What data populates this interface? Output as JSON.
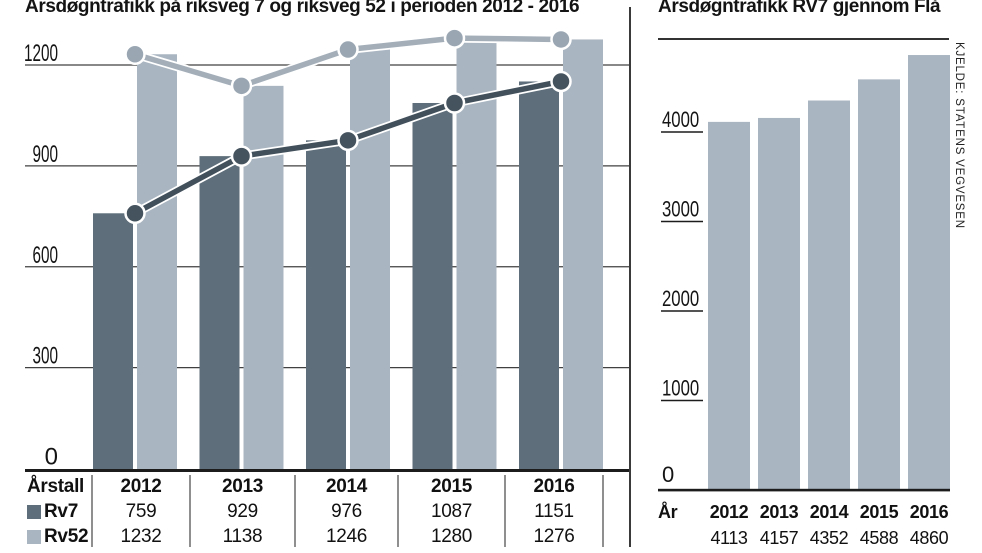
{
  "chart_data": [
    {
      "type": "bar",
      "subtype": "grouped-bars-with-line-overlay",
      "title": "Årsdøgntrafikk på riksveg 7 og riksveg 52 i perioden 2012 - 2016",
      "categories": [
        "2012",
        "2013",
        "2014",
        "2015",
        "2016"
      ],
      "series": [
        {
          "name": "Rv7",
          "values": [
            759,
            929,
            976,
            1087,
            1151
          ],
          "bar_color": "#5e6e7a",
          "line_color": "#42505b",
          "marker_color": "#45535e"
        },
        {
          "name": "Rv52",
          "values": [
            1232,
            1138,
            1246,
            1280,
            1276
          ],
          "bar_color": "#a9b5c1",
          "line_color": "#a3aeb9",
          "marker_color": "#9aa7b3"
        }
      ],
      "ylim": [
        0,
        1200
      ],
      "yticks": [
        0,
        300,
        600,
        900,
        1200
      ],
      "grid": true,
      "table_header": "Årstall",
      "legend_position": "table-left"
    },
    {
      "type": "bar",
      "title": "Årsdøgntrafikk RV7 gjennom Flå",
      "categories": [
        "2012",
        "2013",
        "2014",
        "2015",
        "2016"
      ],
      "values": [
        4113,
        4157,
        4352,
        4588,
        4860
      ],
      "bar_color": "#a9b5c1",
      "ylim": [
        0,
        5000
      ],
      "yticks": [
        0,
        1000,
        2000,
        3000,
        4000
      ],
      "grid": false,
      "row_header": "År"
    }
  ],
  "source": {
    "label": "KJELDE: STATENS VEGVESEN"
  },
  "colors": {
    "background": "#ffffff",
    "text": "#141414",
    "gridline": "#404040",
    "axis_baseline": "#1c1c1c",
    "table_divider": "#8f8f8f",
    "panel_divider": "#3a3a3a"
  }
}
